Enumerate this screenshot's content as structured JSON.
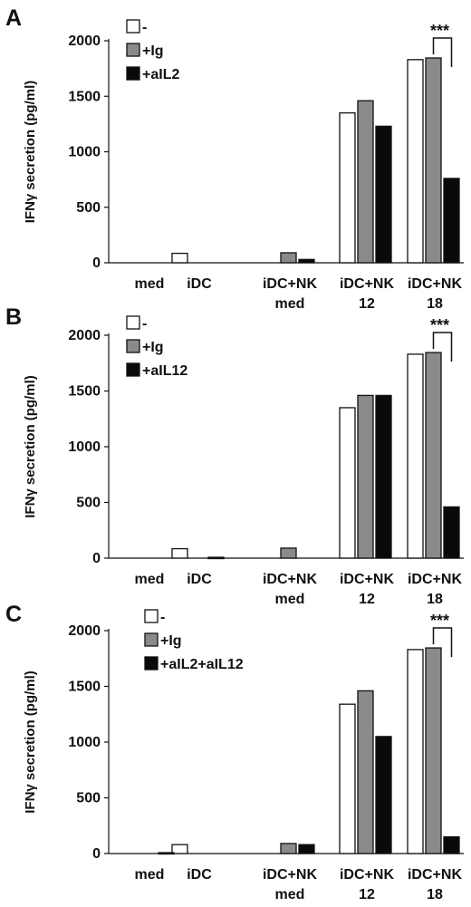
{
  "chart_data": [
    {
      "panel": "A",
      "type": "bar",
      "ylabel": "IFNγ secretion (pg/ml)",
      "ylim": [
        0,
        2000
      ],
      "yticks": [
        0,
        500,
        1000,
        1500,
        2000
      ],
      "categories": [
        [
          "med"
        ],
        [
          "iDC"
        ],
        [
          "iDC+NK",
          "med"
        ],
        [
          "iDC+NK",
          "12"
        ],
        [
          "iDC+NK",
          "18"
        ]
      ],
      "series": [
        {
          "name": "-",
          "color": "#ffffff",
          "values": [
            0,
            85,
            0,
            1350,
            1830
          ]
        },
        {
          "name": "+Ig",
          "color": "#8a8a8a",
          "values": [
            0,
            0,
            90,
            1460,
            1845
          ]
        },
        {
          "name": "+aIL2",
          "color": "#0a0a0a",
          "values": [
            0,
            0,
            30,
            1230,
            760
          ]
        }
      ],
      "legend_position": "top-left",
      "annotation": {
        "text": "***",
        "category_index": 4
      }
    },
    {
      "panel": "B",
      "type": "bar",
      "ylabel": "IFNγ secretion (pg/ml)",
      "ylim": [
        0,
        2000
      ],
      "yticks": [
        0,
        500,
        1000,
        1500,
        2000
      ],
      "categories": [
        [
          "med"
        ],
        [
          "iDC"
        ],
        [
          "iDC+NK",
          "med"
        ],
        [
          "iDC+NK",
          "12"
        ],
        [
          "iDC+NK",
          "18"
        ]
      ],
      "series": [
        {
          "name": "-",
          "color": "#ffffff",
          "values": [
            0,
            85,
            0,
            1350,
            1830
          ]
        },
        {
          "name": "+Ig",
          "color": "#8a8a8a",
          "values": [
            0,
            0,
            90,
            1460,
            1845
          ]
        },
        {
          "name": "+aIL12",
          "color": "#0a0a0a",
          "values": [
            0,
            8,
            0,
            1460,
            460
          ]
        }
      ],
      "legend_position": "top-left",
      "annotation": {
        "text": "***",
        "category_index": 4
      }
    },
    {
      "panel": "C",
      "type": "bar",
      "ylabel": "IFNγ secretion (pg/ml)",
      "ylim": [
        0,
        2000
      ],
      "yticks": [
        0,
        500,
        1000,
        1500,
        2000
      ],
      "categories": [
        [
          "med"
        ],
        [
          "iDC"
        ],
        [
          "iDC+NK",
          "med"
        ],
        [
          "iDC+NK",
          "12"
        ],
        [
          "iDC+NK",
          "18"
        ]
      ],
      "series": [
        {
          "name": "-",
          "color": "#ffffff",
          "values": [
            0,
            80,
            0,
            1340,
            1830
          ]
        },
        {
          "name": "+Ig",
          "color": "#8a8a8a",
          "values": [
            0,
            0,
            90,
            1460,
            1845
          ]
        },
        {
          "name": "+aIL2+aIL12",
          "color": "#0a0a0a",
          "values": [
            8,
            0,
            80,
            1050,
            150
          ]
        }
      ],
      "legend_position": "top-left",
      "annotation": {
        "text": "***",
        "category_index": 4
      }
    }
  ]
}
